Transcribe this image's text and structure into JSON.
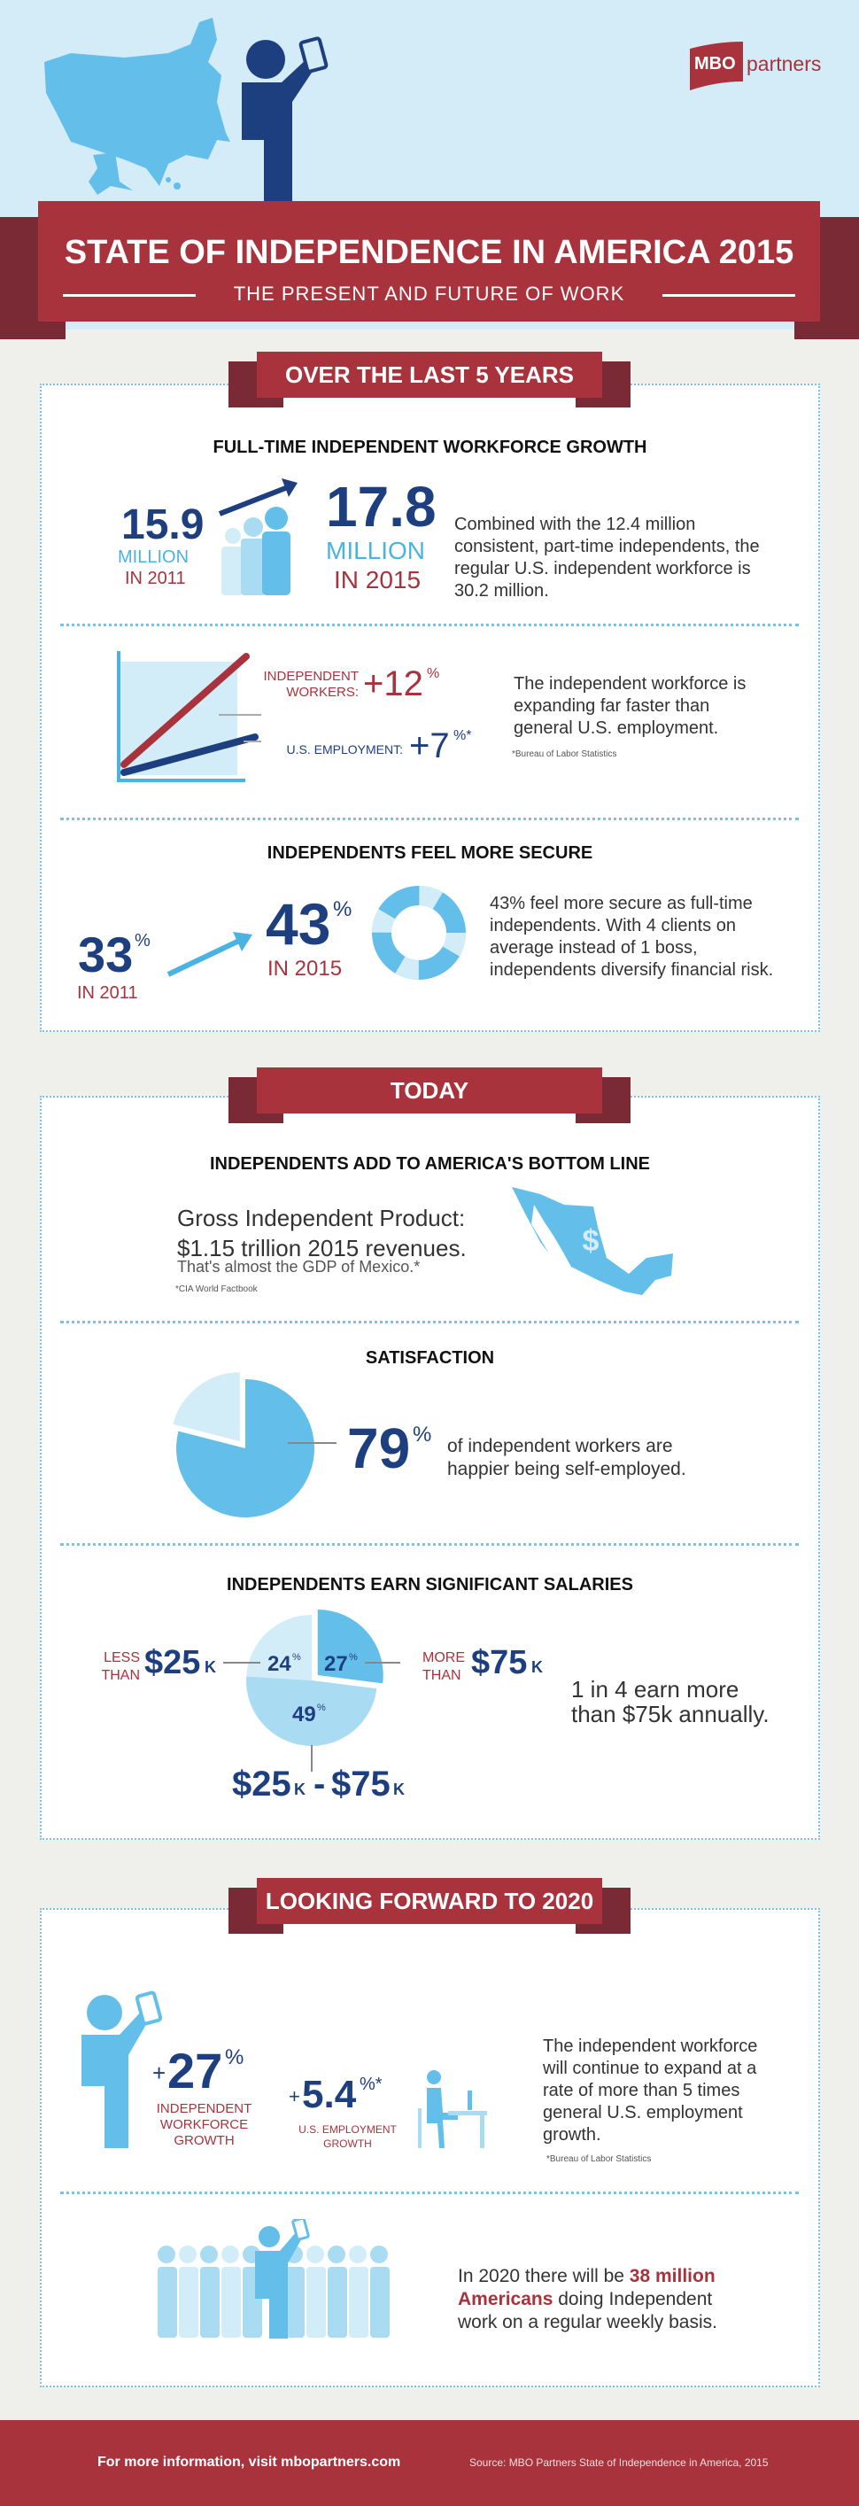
{
  "colors": {
    "red": "#a8333d",
    "dark_red": "#7a2a35",
    "navy": "#1e3f7f",
    "light_blue": "#63bfea",
    "pale_blue": "#d3edf8",
    "mid_blue": "#a9dcf3",
    "sky": "#d4ecf8"
  },
  "logo": {
    "left": "MBO",
    "right": "partners"
  },
  "header": {
    "title": "STATE OF INDEPENDENCE IN AMERICA 2015",
    "subtitle": "THE PRESENT AND FUTURE OF WORK"
  },
  "sections": {
    "last5": {
      "heading": "OVER THE LAST 5 YEARS",
      "growth": {
        "title": "FULL-TIME INDEPENDENT WORKFORCE GROWTH",
        "from_value": "15.9",
        "from_unit": "MILLION",
        "from_year": "IN 2011",
        "to_value": "17.8",
        "to_unit": "MILLION",
        "to_year": "IN 2015",
        "text": "Combined with the 12.4 million consistent, part-time independents, the regular U.S. independent workforce is 30.2 million."
      },
      "compare": {
        "indep_label_1": "INDEPENDENT",
        "indep_label_2": "WORKERS:",
        "indep_value": "+12",
        "indep_pct": "%",
        "us_label": "U.S. EMPLOYMENT:",
        "us_value": "+7",
        "us_pct": "%*",
        "text": "The independent workforce is expanding far faster than general U.S. employment.",
        "footnote": "*Bureau of Labor Statistics"
      },
      "secure": {
        "title": "INDEPENDENTS FEEL MORE SECURE",
        "from_value": "33",
        "from_pct": "%",
        "from_year": "IN 2011",
        "to_value": "43",
        "to_pct": "%",
        "to_year": "IN 2015",
        "text": "43% feel more secure as full-time independents. With 4 clients on average instead of 1 boss, independents diversify financial risk."
      }
    },
    "today": {
      "heading": "TODAY",
      "bottom_line": {
        "title": "INDEPENDENTS ADD TO AMERICA'S BOTTOM LINE",
        "line1": "Gross Independent Product:",
        "line2": "$1.15 trillion 2015 revenues.",
        "line3": "That's almost the GDP of Mexico.*",
        "footnote": "*CIA World Factbook"
      },
      "satisfaction": {
        "title": "SATISFACTION",
        "value": "79",
        "pct": "%",
        "text": "of independent workers are happier being self-employed."
      },
      "salaries": {
        "title": "INDEPENDENTS EARN SIGNIFICANT SALARIES",
        "less_label_1": "LESS",
        "less_label_2": "THAN",
        "less_value": "$25",
        "less_k": "K",
        "more_label_1": "MORE",
        "more_label_2": "THAN",
        "more_value": "$75",
        "more_k": "K",
        "mid_a": "$25",
        "mid_k1": "K",
        "mid_dash": "-",
        "mid_b": "$75",
        "mid_k2": "K",
        "slice_24": "24",
        "slice_27": "27",
        "slice_49": "49",
        "pct": "%",
        "text": "1 in 4 earn more than $75k annually."
      }
    },
    "forward": {
      "heading": "LOOKING FORWARD TO 2020",
      "growth": {
        "indep_value": "27",
        "indep_plus": "+",
        "indep_pct": "%",
        "indep_label_1": "INDEPENDENT",
        "indep_label_2": "WORKFORCE",
        "indep_label_3": "GROWTH",
        "us_plus": "+",
        "us_value": "5.4",
        "us_pct": "%*",
        "us_label_1": "U.S. EMPLOYMENT",
        "us_label_2": "GROWTH",
        "text": "The independent workforce will continue to expand at a rate of more than 5 times general U.S. employment growth.",
        "footnote": "*Bureau of Labor Statistics"
      },
      "americans": {
        "text_a": "In 2020 there will be ",
        "highlight": "38 million Americans",
        "text_b": " doing Independent work on a regular weekly basis."
      }
    }
  },
  "footer": {
    "more_info": "For more information, visit mbopartners.com",
    "source": "Source: MBO Partners State of Independence in America, 2015"
  },
  "icons": [
    "us-map",
    "person-with-tablet",
    "people-growth",
    "arrow-up-right",
    "line-chart",
    "life-ring",
    "mexico-map-dollar",
    "pie-chart",
    "person-at-desk",
    "crowd"
  ],
  "chart_data": [
    {
      "type": "line",
      "series": [
        {
          "name": "INDEPENDENT WORKERS",
          "values": [
            0,
            12
          ]
        },
        {
          "name": "U.S. EMPLOYMENT",
          "values": [
            0,
            7
          ]
        }
      ]
    },
    {
      "type": "pie",
      "title": "SATISFACTION",
      "values": [
        79,
        21
      ]
    },
    {
      "type": "pie",
      "title": "INDEPENDENTS EARN SIGNIFICANT SALARIES",
      "categories": [
        "MORE THAN $75K",
        "$25K - $75K",
        "LESS THAN $25K"
      ],
      "values": [
        27,
        49,
        24
      ]
    }
  ]
}
